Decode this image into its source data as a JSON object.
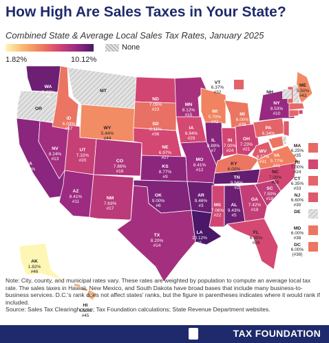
{
  "title": "How High Are Sales Taxes in Your State?",
  "subtitle": "Combined State & Average Local Sales Tax Rates, January 2025",
  "legend": {
    "min": "1.82%",
    "max": "10.12%",
    "none": "None"
  },
  "colors": {
    "low": "#fef6b4",
    "mid": "#f07f5f",
    "high": "#4a1769",
    "none": "#d9d9d9",
    "navy": "#1e2a6b"
  },
  "states": {
    "WA": {
      "rate": "9.43%",
      "rank": "#4"
    },
    "OR": {
      "rate": "",
      "rank": ""
    },
    "CA": {
      "rate": "8.80%",
      "rank": "#8"
    },
    "NV": {
      "rate": "8.24%",
      "rank": "#13"
    },
    "ID": {
      "rate": "6.03%",
      "rank": "#37"
    },
    "MT": {
      "rate": "",
      "rank": ""
    },
    "WY": {
      "rate": "5.44%",
      "rank": "#44"
    },
    "UT": {
      "rate": "7.32%",
      "rank": "#20"
    },
    "AZ": {
      "rate": "8.41%",
      "rank": "#11"
    },
    "CO": {
      "rate": "7.86%",
      "rank": "#16"
    },
    "NM": {
      "rate": "7.63%",
      "rank": "#17"
    },
    "ND": {
      "rate": "7.05%",
      "rank": "#23"
    },
    "SD": {
      "rate": "6.11%",
      "rank": "#36"
    },
    "NE": {
      "rate": "6.97%",
      "rank": "#27"
    },
    "KS": {
      "rate": "8.77%",
      "rank": "#9"
    },
    "OK": {
      "rate": "9.00%",
      "rank": "#6"
    },
    "TX": {
      "rate": "8.20%",
      "rank": "#14"
    },
    "MN": {
      "rate": "8.12%",
      "rank": "#15"
    },
    "IA": {
      "rate": "6.94%",
      "rank": "#29"
    },
    "MO": {
      "rate": "8.41%",
      "rank": "#12"
    },
    "AR": {
      "rate": "9.46%",
      "rank": "#3"
    },
    "LA": {
      "rate": "10.12%",
      "rank": "#1"
    },
    "WI": {
      "rate": "5.70%",
      "rank": "#42"
    },
    "IL": {
      "rate": "8.89%",
      "rank": "#7"
    },
    "MI": {
      "rate": "6.00%",
      "rank": "#38"
    },
    "IN": {
      "rate": "7.00%",
      "rank": "#24"
    },
    "OH": {
      "rate": "7.23%",
      "rank": "#21"
    },
    "KY": {
      "rate": "6.00%",
      "rank": "#38"
    },
    "TN": {
      "rate": "9.56%",
      "rank": "#2"
    },
    "MS": {
      "rate": "7.06%",
      "rank": "#22"
    },
    "AL": {
      "rate": "9.43%",
      "rank": "#5"
    },
    "GA": {
      "rate": "7.42%",
      "rank": "#19"
    },
    "FL": {
      "rate": "6.95%",
      "rank": "#28"
    },
    "SC": {
      "rate": "7.50%",
      "rank": "#18"
    },
    "NC": {
      "rate": "7.00%",
      "rank": "#26"
    },
    "VA": {
      "rate": "5.77%",
      "rank": "#41"
    },
    "WV": {
      "rate": "6.57%",
      "rank": "#31"
    },
    "PA": {
      "rate": "6.34%",
      "rank": "#34"
    },
    "NY": {
      "rate": "8.53%",
      "rank": "#10"
    },
    "ME": {
      "rate": "5.50%",
      "rank": "#43"
    },
    "VT": {
      "rate": "6.37%",
      "rank": "#32"
    },
    "NH": {
      "rate": "",
      "rank": ""
    },
    "MA": {
      "rate": "6.25%",
      "rank": "#35"
    },
    "RI": {
      "rate": "7.00%",
      "rank": "#24"
    },
    "CT": {
      "rate": "6.35%",
      "rank": "#33"
    },
    "NJ": {
      "rate": "6.60%",
      "rank": "#30"
    },
    "DE": {
      "rate": "",
      "rank": ""
    },
    "MD": {
      "rate": "6.00%",
      "rank": "#38"
    },
    "DC": {
      "rate": "6.00%",
      "rank": "(#38)"
    },
    "AK": {
      "rate": "1.82%",
      "rank": "#46"
    },
    "HI": {
      "rate": "4.50%",
      "rank": "#45"
    }
  },
  "note": "Note: City, county, and municipal rates vary. These rates are weighted by population to compute an average local tax rate. The sales taxes in Hawaii, New Mexico, and South Dakota have broad bases that include many business-to-business services. D.C.'s rank does not affect states' ranks, but the figure in parentheses indicates where it would rank if included.",
  "source": "Source: Sales Tax Clearinghouse; Tax Foundation calculations; State Revenue Department websites.",
  "brand": "TAX FOUNDATION"
}
